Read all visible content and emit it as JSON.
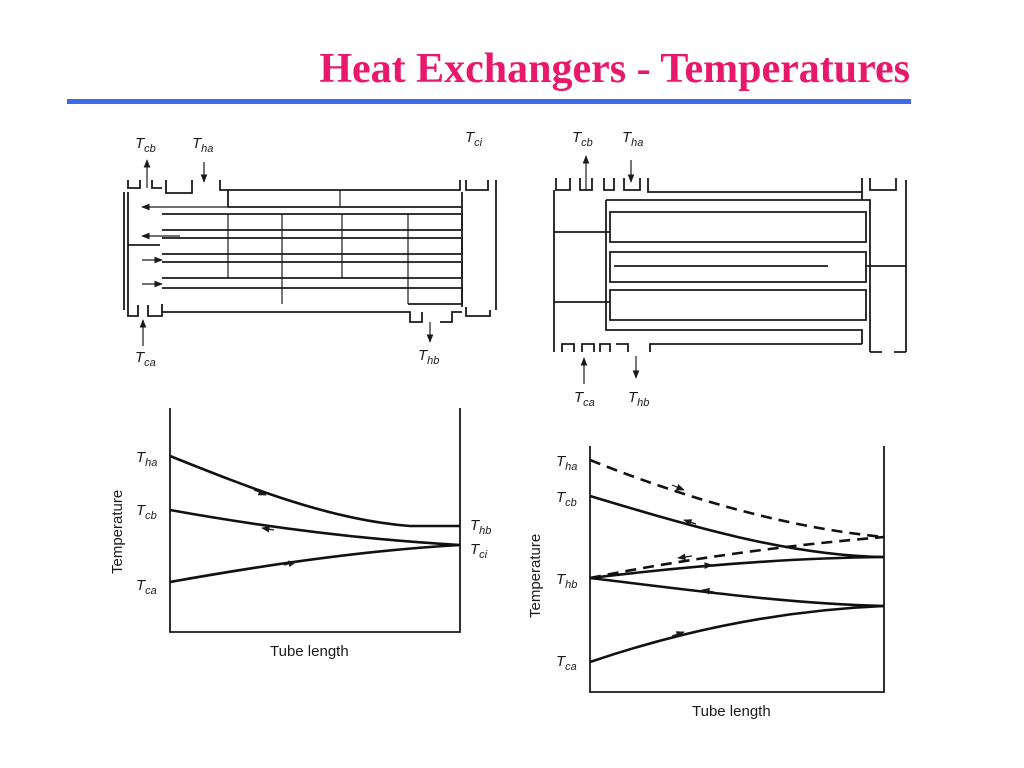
{
  "title": "Heat Exchangers - Temperatures",
  "colors": {
    "title": "#e8196b",
    "rule": "#3d6be8",
    "ink": "#1a1a1a"
  },
  "labels": {
    "T": "T",
    "ha": "ha",
    "cb": "cb",
    "ci": "ci",
    "ca": "ca",
    "hb": "hb"
  },
  "axes": {
    "ylabel": "Temperature",
    "xlabel": "Tube length"
  },
  "chart_data": [
    {
      "type": "line",
      "xlabel": "Tube length",
      "ylabel": "Temperature",
      "left_labels": [
        "Tha",
        "Tcb",
        "Tca"
      ],
      "right_labels": [
        "Thb",
        "Tci"
      ],
      "series": [
        {
          "name": "Tha → Thb",
          "style": "solid",
          "arrow": "right"
        },
        {
          "name": "Tcb ← Tci",
          "style": "solid",
          "arrow": "left"
        },
        {
          "name": "Tca → Tci",
          "style": "solid",
          "arrow": "right"
        }
      ]
    },
    {
      "type": "line",
      "xlabel": "Tube length",
      "ylabel": "Temperature",
      "left_labels": [
        "Tha",
        "Tcb",
        "Thb",
        "Tca"
      ],
      "series": [
        {
          "name": "hot pass 1",
          "style": "dashed",
          "arrow": "right"
        },
        {
          "name": "hot pass 2",
          "style": "dashed",
          "arrow": "left"
        },
        {
          "name": "cold pass 1",
          "style": "solid",
          "arrow": "right"
        },
        {
          "name": "cold pass 2",
          "style": "solid",
          "arrow": "left"
        },
        {
          "name": "cold pass 3",
          "style": "solid",
          "arrow": "right"
        },
        {
          "name": "cold pass 4",
          "style": "solid",
          "arrow": "left"
        }
      ]
    }
  ]
}
